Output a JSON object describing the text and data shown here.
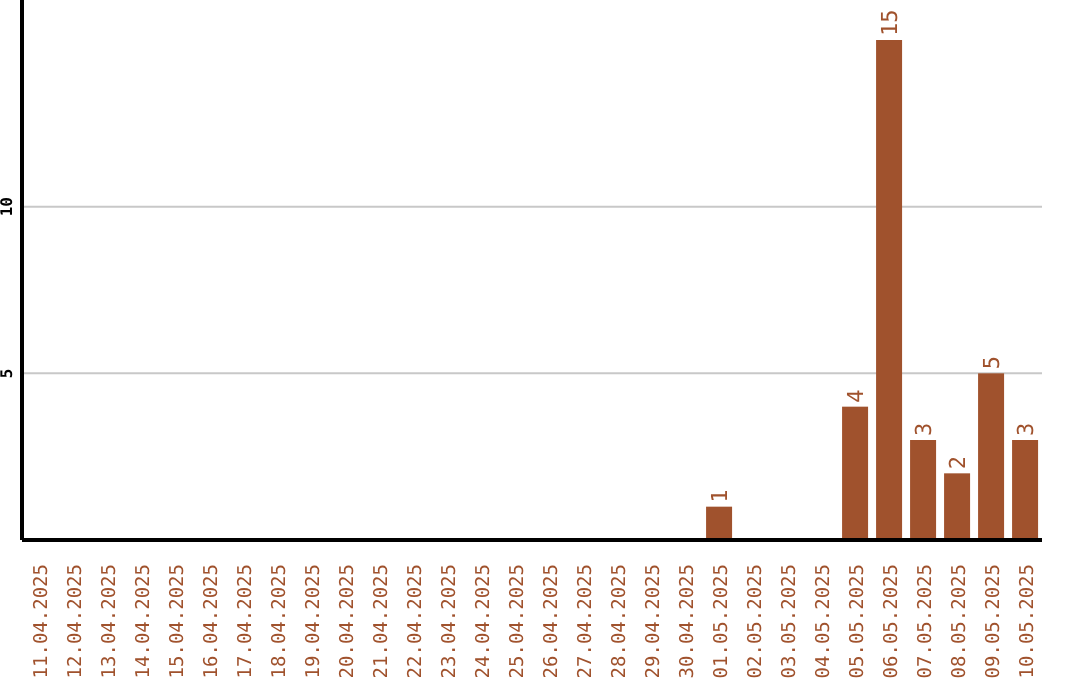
{
  "chart_data": {
    "type": "bar",
    "categories": [
      "11.04.2025",
      "12.04.2025",
      "13.04.2025",
      "14.04.2025",
      "15.04.2025",
      "16.04.2025",
      "17.04.2025",
      "18.04.2025",
      "19.04.2025",
      "20.04.2025",
      "21.04.2025",
      "22.04.2025",
      "23.04.2025",
      "24.04.2025",
      "25.04.2025",
      "26.04.2025",
      "27.04.2025",
      "28.04.2025",
      "29.04.2025",
      "30.04.2025",
      "01.05.2025",
      "02.05.2025",
      "03.05.2025",
      "04.05.2025",
      "05.05.2025",
      "06.05.2025",
      "07.05.2025",
      "08.05.2025",
      "09.05.2025",
      "10.05.2025"
    ],
    "values": [
      0,
      0,
      0,
      0,
      0,
      0,
      0,
      0,
      0,
      0,
      0,
      0,
      0,
      0,
      0,
      0,
      0,
      0,
      0,
      0,
      1,
      0,
      0,
      0,
      4,
      15,
      3,
      2,
      5,
      3
    ],
    "value_labels": [
      null,
      null,
      null,
      null,
      null,
      null,
      null,
      null,
      null,
      null,
      null,
      null,
      null,
      null,
      null,
      null,
      null,
      null,
      null,
      null,
      "1",
      null,
      null,
      null,
      "4",
      "15",
      "3",
      "2",
      "5",
      "3"
    ],
    "color": "#a0522d",
    "ylim": [
      0,
      16.2
    ],
    "yticks": [
      5,
      10
    ],
    "grid": "y"
  }
}
